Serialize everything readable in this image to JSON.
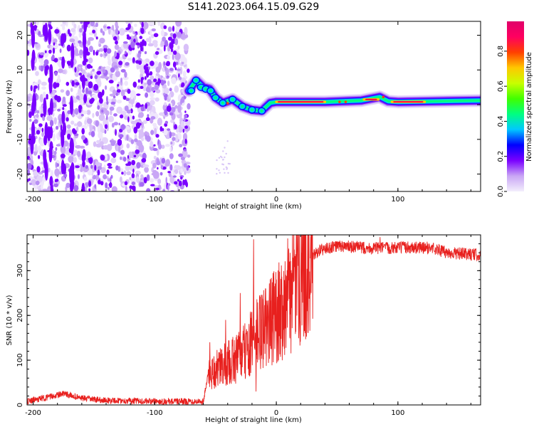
{
  "title": "S141.2023.064.15.09.G29",
  "chart_data": [
    {
      "type": "heatmap",
      "name": "spectrogram",
      "xlabel": "Height of straight line (km)",
      "ylabel": "Frequency (Hz)",
      "xlim": [
        -205,
        168
      ],
      "ylim": [
        -25,
        24
      ],
      "xticks": [
        -200,
        -100,
        0,
        100
      ],
      "yticks": [
        -20,
        -10,
        0,
        10,
        20
      ],
      "xtick_labels": [
        "-200",
        "-100",
        "0",
        "100"
      ],
      "ytick_labels": [
        "-20",
        "-10",
        "0",
        "10",
        "20"
      ],
      "noise_region_x": [
        -205,
        -72
      ],
      "ridge": [
        {
          "x": -72,
          "f": 4
        },
        {
          "x": -66,
          "f": 7
        },
        {
          "x": -60,
          "f": 5
        },
        {
          "x": -55,
          "f": 4.5
        },
        {
          "x": -50,
          "f": 2
        },
        {
          "x": -44,
          "f": 0.5
        },
        {
          "x": -36,
          "f": 1.5
        },
        {
          "x": -28,
          "f": -0.5
        },
        {
          "x": -20,
          "f": -1.5
        },
        {
          "x": -12,
          "f": -1.8
        },
        {
          "x": -5,
          "f": 0.5
        },
        {
          "x": 0,
          "f": 0.8
        },
        {
          "x": 40,
          "f": 0.8
        },
        {
          "x": 70,
          "f": 1.2
        },
        {
          "x": 85,
          "f": 2.2
        },
        {
          "x": 92,
          "f": 1
        },
        {
          "x": 100,
          "f": 0.8
        },
        {
          "x": 168,
          "f": 1.2
        }
      ],
      "colorbar": {
        "label": "Normalized spectral amplitude",
        "ticks": [
          0.0,
          0.2,
          0.4,
          0.6,
          0.8
        ],
        "tick_labels": [
          "0.0",
          "0.2",
          "0.4",
          "0.6",
          "0.8"
        ],
        "range": [
          0,
          0.97
        ],
        "colors": [
          "#f3eefc",
          "#c9a6f5",
          "#7a00ff",
          "#0000ff",
          "#00c8ff",
          "#00ff80",
          "#40ff00",
          "#c8ff00",
          "#ffc800",
          "#ff4000",
          "#ff0060",
          "#e0006a"
        ]
      }
    },
    {
      "type": "line",
      "name": "snr",
      "xlabel": "Height of straight line (km)",
      "ylabel": "SNR (10 * v/v)",
      "xlim": [
        -205,
        168
      ],
      "ylim": [
        0,
        380
      ],
      "xticks": [
        -200,
        -100,
        0,
        100
      ],
      "yticks": [
        0,
        100,
        200,
        300
      ],
      "xtick_labels": [
        "-200",
        "-100",
        "0",
        "100"
      ],
      "ytick_labels": [
        "0",
        "100",
        "200",
        "300"
      ],
      "color": "#e8201e",
      "trend": [
        {
          "x": -205,
          "y": 8
        },
        {
          "x": -190,
          "y": 16
        },
        {
          "x": -175,
          "y": 25
        },
        {
          "x": -160,
          "y": 15
        },
        {
          "x": -140,
          "y": 10
        },
        {
          "x": -100,
          "y": 8
        },
        {
          "x": -60,
          "y": 8
        },
        {
          "x": -56,
          "y": 70
        },
        {
          "x": -45,
          "y": 85
        },
        {
          "x": -35,
          "y": 100
        },
        {
          "x": -25,
          "y": 120
        },
        {
          "x": -15,
          "y": 160
        },
        {
          "x": -5,
          "y": 185
        },
        {
          "x": 5,
          "y": 220
        },
        {
          "x": 15,
          "y": 270
        },
        {
          "x": 25,
          "y": 320
        },
        {
          "x": 35,
          "y": 345
        },
        {
          "x": 50,
          "y": 355
        },
        {
          "x": 80,
          "y": 350
        },
        {
          "x": 110,
          "y": 352
        },
        {
          "x": 130,
          "y": 350
        },
        {
          "x": 140,
          "y": 340
        },
        {
          "x": 168,
          "y": 335
        }
      ],
      "spikes": [
        {
          "x": -55,
          "y": 140
        },
        {
          "x": -42,
          "y": 190
        },
        {
          "x": -30,
          "y": 250
        },
        {
          "x": -19,
          "y": 370
        },
        {
          "x": -17,
          "y": 30
        },
        {
          "x": -9,
          "y": 260
        },
        {
          "x": -3,
          "y": 295
        },
        {
          "x": 28,
          "y": 375
        },
        {
          "x": 85,
          "y": 375
        }
      ]
    }
  ]
}
